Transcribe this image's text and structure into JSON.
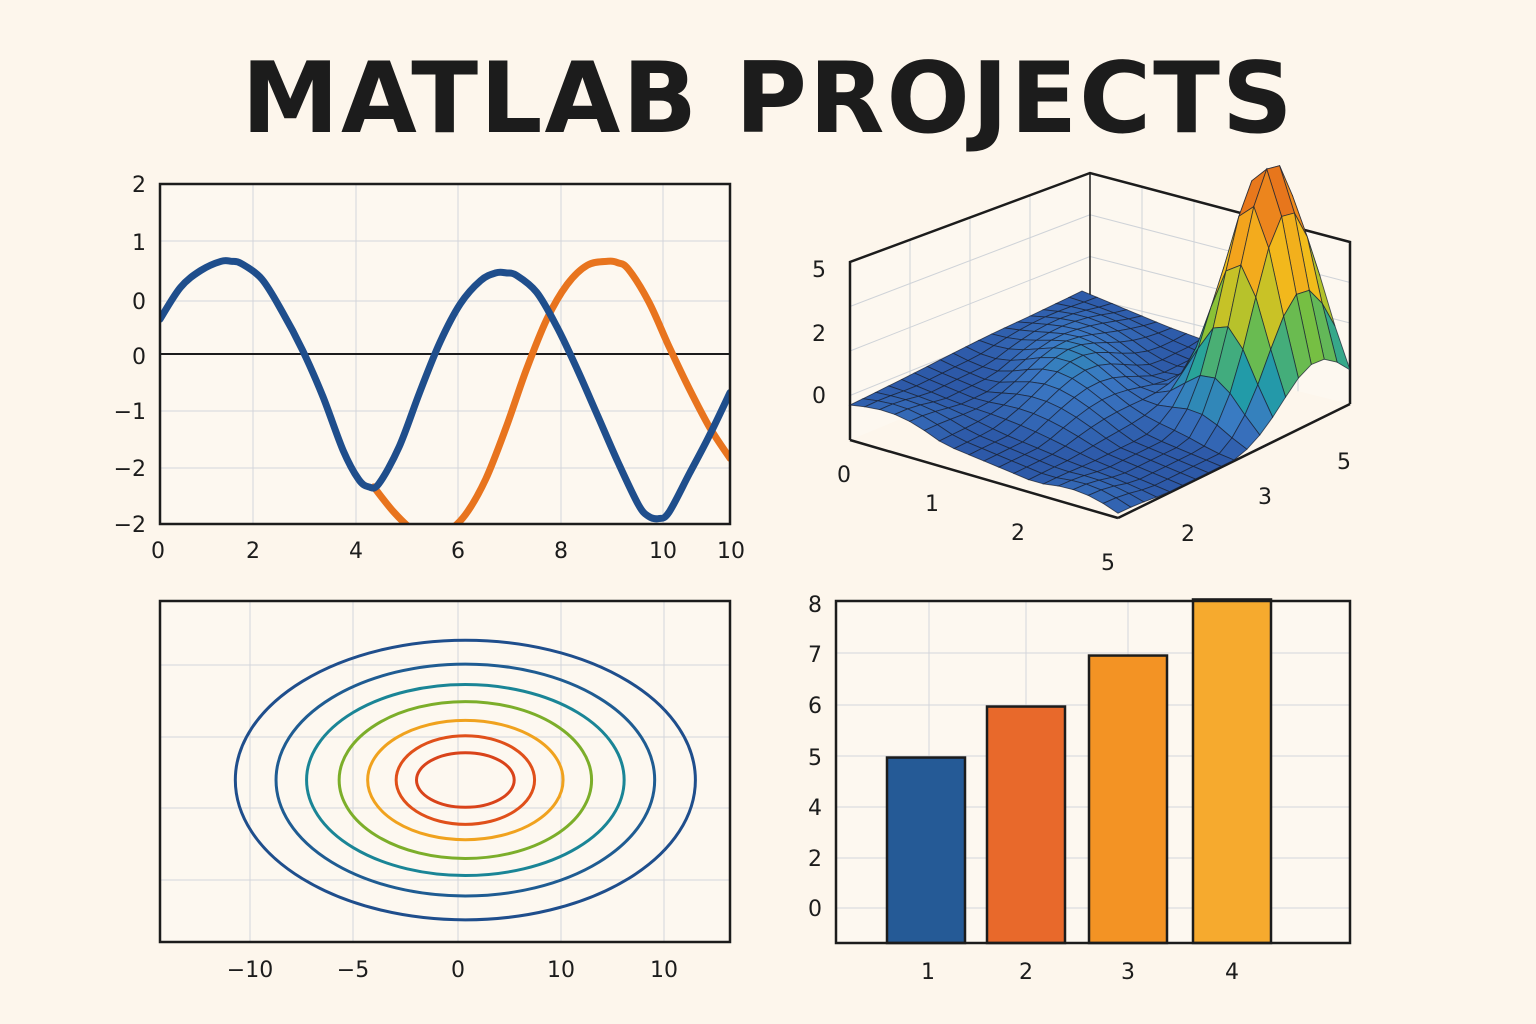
{
  "page": {
    "title": "MATLAB PROJECTS"
  },
  "chart_data": [
    {
      "type": "line",
      "ytick_labels": [
        "2",
        "1",
        "0",
        "0",
        "−1",
        "−2",
        "−2"
      ],
      "xtick_labels": [
        "0",
        "2",
        "4",
        "6",
        "8",
        "10",
        "10"
      ],
      "xlim": [
        0,
        11.2
      ],
      "ylim": [
        -2.2,
        2.2
      ],
      "grid": true,
      "hline_y": 0,
      "series": [
        {
          "color": "#1f4e8c",
          "x": [
            0,
            0.4,
            0.8,
            1.2,
            1.4,
            1.6,
            2.0,
            2.4,
            2.8,
            3.2,
            3.6,
            3.9,
            4.1,
            4.3,
            4.7,
            5.1,
            5.5,
            5.9,
            6.3,
            6.6,
            6.8,
            7.0,
            7.4,
            7.8,
            8.2,
            8.6,
            9.0,
            9.4,
            9.6,
            9.8,
            10.0,
            10.4,
            10.8,
            11.2
          ],
          "y": [
            0.45,
            0.86,
            1.08,
            1.2,
            1.2,
            1.17,
            0.97,
            0.55,
            0.05,
            -0.55,
            -1.25,
            -1.62,
            -1.72,
            -1.68,
            -1.2,
            -0.5,
            0.15,
            0.65,
            0.95,
            1.05,
            1.05,
            1.02,
            0.8,
            0.35,
            -0.2,
            -0.8,
            -1.4,
            -1.95,
            -2.1,
            -2.13,
            -2.05,
            -1.55,
            -1.05,
            -0.5
          ]
        },
        {
          "color": "#e8741e",
          "x": [
            4.2,
            4.6,
            5.0,
            5.3,
            5.6,
            6.0,
            6.4,
            6.8,
            7.2,
            7.6,
            8.0,
            8.4,
            8.8,
            9.0,
            9.2,
            9.6,
            10.0,
            10.4,
            10.8,
            11.2
          ],
          "y": [
            -1.72,
            -2.05,
            -2.3,
            -2.4,
            -2.33,
            -2.08,
            -1.62,
            -0.95,
            -0.2,
            0.45,
            0.9,
            1.15,
            1.2,
            1.18,
            1.1,
            0.68,
            0.1,
            -0.45,
            -0.95,
            -1.35
          ]
        }
      ]
    },
    {
      "type": "surface",
      "ztick_labels": [
        "5",
        "2",
        "0"
      ],
      "xtick_labels": [
        "0",
        "1",
        "2",
        "5"
      ],
      "ytick_labels": [
        "2",
        "3",
        "5"
      ],
      "colormap": [
        "#2d59a8",
        "#3b78c4",
        "#1fa0a4",
        "#7ec23a",
        "#f2c21b",
        "#f39a1e",
        "#e05f1a"
      ],
      "peak_height": 1
    },
    {
      "type": "contour",
      "xtick_labels": [
        "−10",
        "−5",
        "0",
        "10",
        "10"
      ],
      "xlim": [
        -15,
        13
      ],
      "ylim": [
        -10,
        10
      ],
      "grid": true,
      "center": [
        0,
        -0.5
      ],
      "levels": [
        {
          "rx": 11.3,
          "ry": 8.2,
          "color": "#1f4e8c"
        },
        {
          "rx": 9.3,
          "ry": 6.8,
          "color": "#1f5c92"
        },
        {
          "rx": 7.8,
          "ry": 5.6,
          "color": "#1a8596"
        },
        {
          "rx": 6.2,
          "ry": 4.6,
          "color": "#7cae2a"
        },
        {
          "rx": 4.8,
          "ry": 3.5,
          "color": "#f0a21e"
        },
        {
          "rx": 3.4,
          "ry": 2.6,
          "color": "#e0501a"
        },
        {
          "rx": 2.4,
          "ry": 1.6,
          "color": "#d9431a"
        }
      ]
    },
    {
      "type": "bar",
      "ytick_labels": [
        "8",
        "7",
        "6",
        "5",
        "4",
        "2",
        "0"
      ],
      "categories": [
        "1",
        "2",
        "3",
        "4"
      ],
      "tick_index_range": [
        -0.7,
        6
      ],
      "values": [
        2.95,
        3.95,
        4.95,
        6.05
      ],
      "colors": [
        "#255a96",
        "#e8692b",
        "#f39324",
        "#f6aa2e"
      ],
      "grid": true
    }
  ]
}
